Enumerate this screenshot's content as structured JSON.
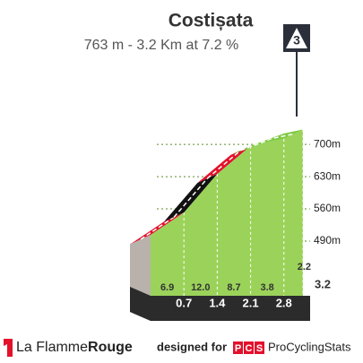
{
  "chart_data": {
    "type": "climb-profile",
    "title": "Costișata",
    "subtitle": "763 m - 3.2 Km at 7.2 %",
    "category": "3",
    "x": [
      0.7,
      1.4,
      2.1,
      2.8,
      3.2
    ],
    "xlim": [
      0,
      3.2
    ],
    "values": [
      6.9,
      12.0,
      8.7,
      3.8,
      2.2
    ],
    "value_labels": [
      "6.9",
      "12.0",
      "8.7",
      "3.8",
      "2.2"
    ],
    "colors": [
      "#e3112b",
      "#111111",
      "#e3112b",
      "#7cc943",
      "#7cc943"
    ],
    "ylim": [
      420,
      780
    ],
    "yticks": [
      {
        "value": 490,
        "label": "490m"
      },
      {
        "value": 560,
        "label": "560m"
      },
      {
        "value": 630,
        "label": "630m"
      },
      {
        "value": 700,
        "label": "700m"
      }
    ]
  },
  "footer": {
    "brand_a": "La Flamme",
    "brand_b": "Rouge",
    "designed": "designed for",
    "pcs": [
      "P",
      "C",
      "S"
    ],
    "pcs_name": "ProCyclingStats"
  }
}
